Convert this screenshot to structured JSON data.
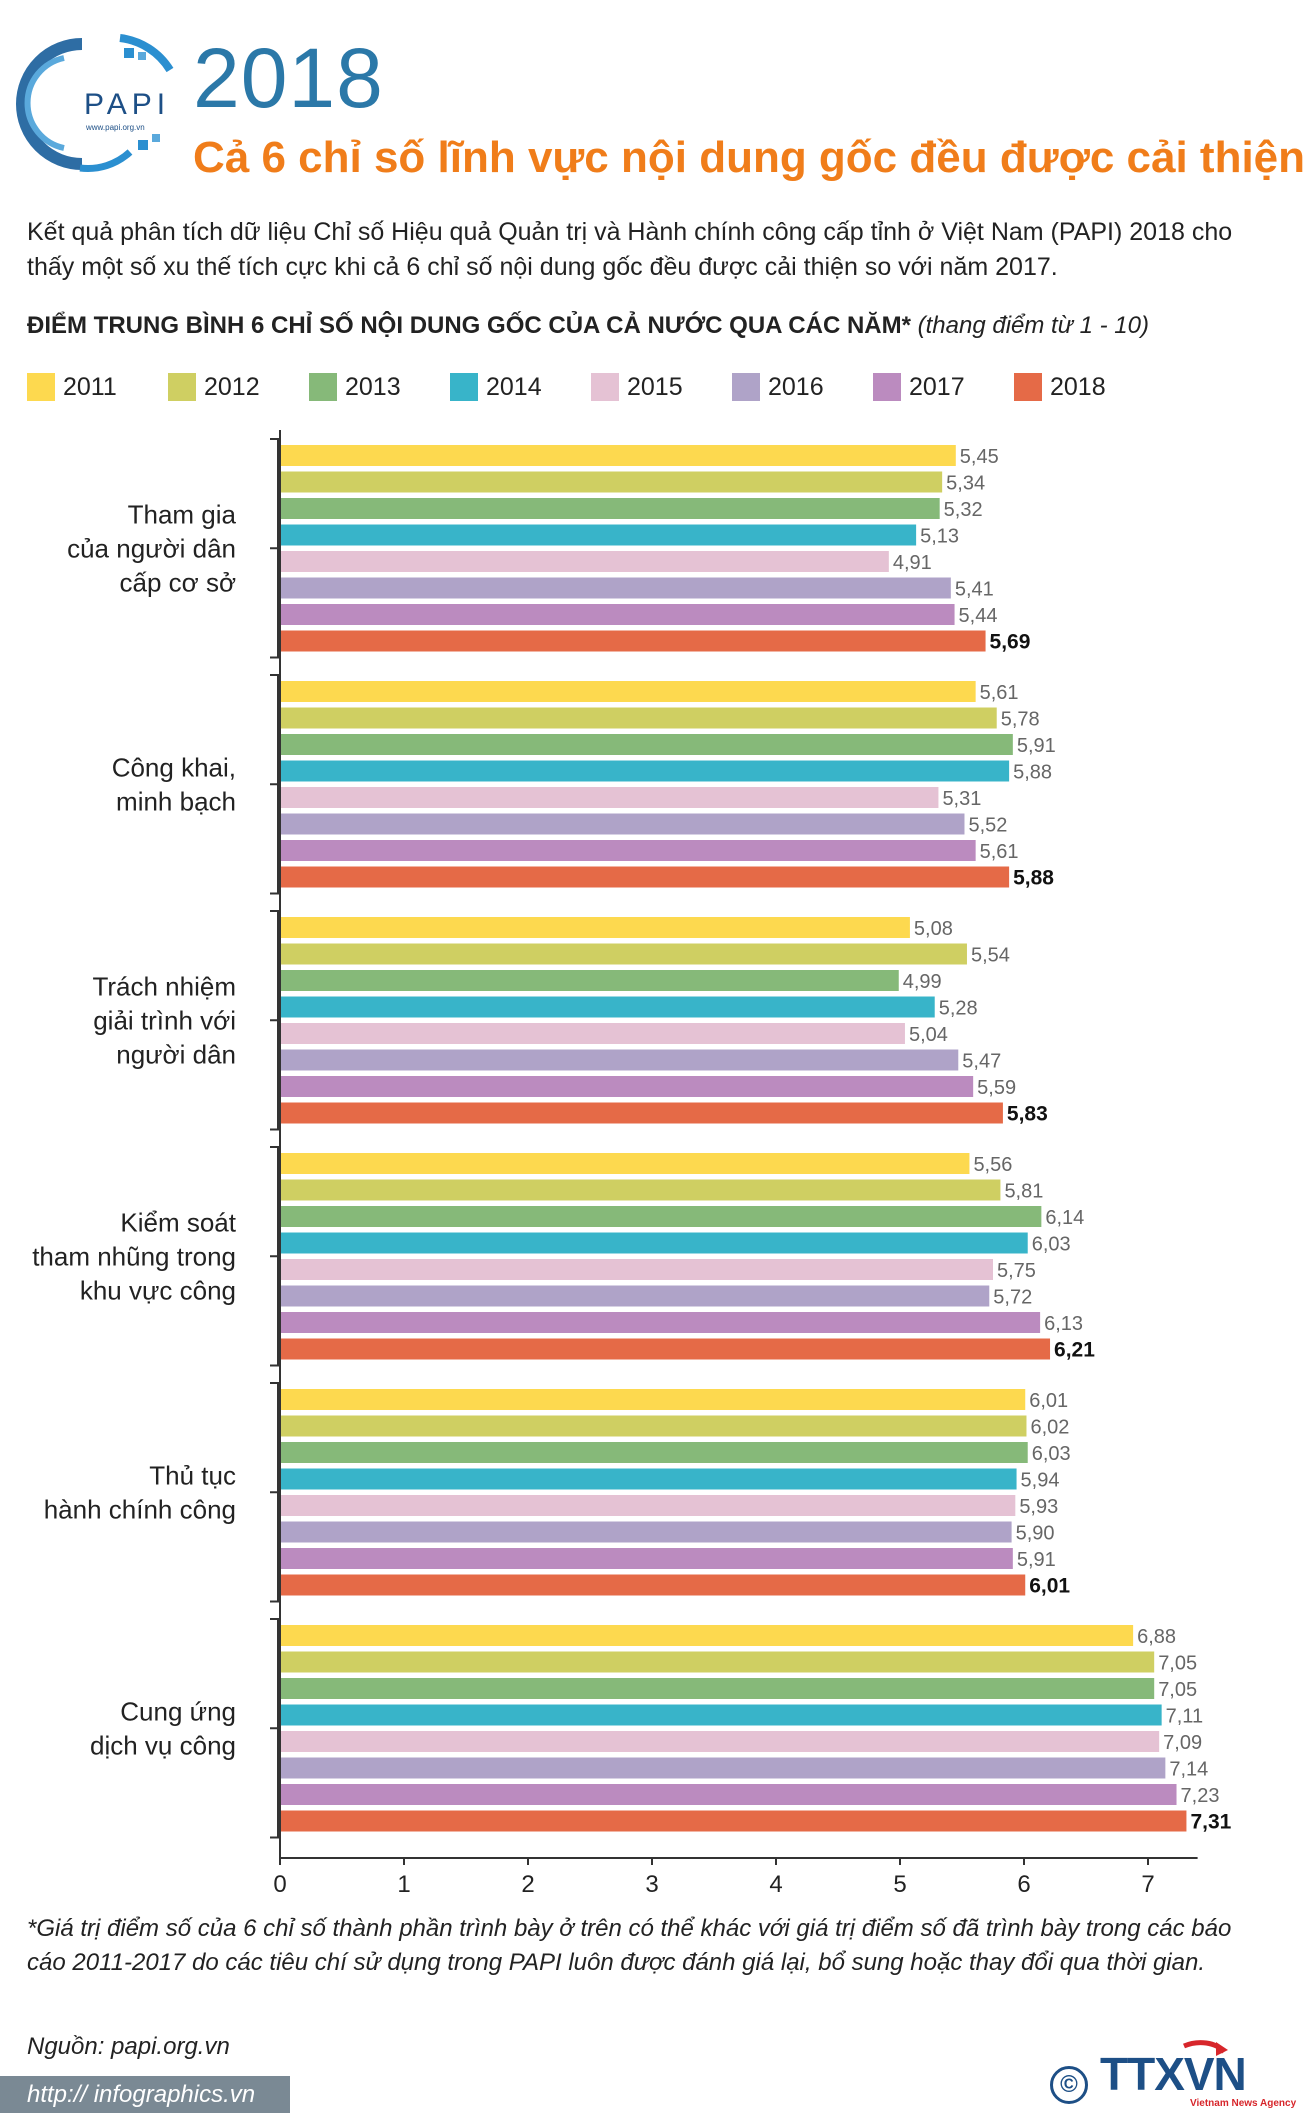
{
  "header": {
    "logo_text": "PAPI",
    "logo_url": "www.papi.org.vn",
    "year": "2018",
    "title": "Cả 6 chỉ số lĩnh vực nội dung gốc đều được cải thiện"
  },
  "intro": "Kết quả phân tích dữ liệu Chỉ số Hiệu quả Quản trị và Hành chính công cấp tỉnh ở Việt Nam (PAPI) 2018 cho thấy một số xu thế tích cực khi cả 6 chỉ số nội dung gốc đều được cải thiện so với năm 2017.",
  "chart_heading": {
    "main": "ĐIỂM TRUNG BÌNH 6 CHỈ SỐ NỘI DUNG GỐC CỦA CẢ NƯỚC QUA CÁC NĂM*",
    "note": "(thang điểm từ 1 - 10)"
  },
  "colors": {
    "2011": "#fdd94f",
    "2012": "#cfcf62",
    "2013": "#86b979",
    "2014": "#38b4c9",
    "2015": "#e5c2d4",
    "2016": "#afa3c8",
    "2017": "#bb8bbf",
    "2018": "#e56a47",
    "axis": "#333333",
    "value_label": "#666666",
    "title_orange": "#f07d1a",
    "year_blue": "#2b78a8"
  },
  "chart_data": {
    "type": "bar",
    "orientation": "horizontal",
    "title": "ĐIỂM TRUNG BÌNH 6 CHỈ SỐ NỘI DUNG GỐC CỦA CẢ NƯỚC QUA CÁC NĂM*",
    "xlabel": "",
    "ylabel": "",
    "xlim": [
      0,
      7.4
    ],
    "x_ticks": [
      "0",
      "1",
      "2",
      "3",
      "4",
      "5",
      "6",
      "7"
    ],
    "series_names": [
      "2011",
      "2012",
      "2013",
      "2014",
      "2015",
      "2016",
      "2017",
      "2018"
    ],
    "categories": [
      {
        "lines": [
          "Tham gia",
          "của người dân",
          "cấp cơ sở"
        ],
        "values": [
          5.45,
          5.34,
          5.32,
          5.13,
          4.91,
          5.41,
          5.44,
          5.69
        ],
        "labels": [
          "5,45",
          "5,34",
          "5,32",
          "5,13",
          "4,91",
          "5,41",
          "5,44",
          "5,69"
        ]
      },
      {
        "lines": [
          "Công khai,",
          "minh bạch"
        ],
        "values": [
          5.61,
          5.78,
          5.91,
          5.88,
          5.31,
          5.52,
          5.61,
          5.88
        ],
        "labels": [
          "5,61",
          "5,78",
          "5,91",
          "5,88",
          "5,31",
          "5,52",
          "5,61",
          "5,88"
        ]
      },
      {
        "lines": [
          "Trách nhiệm",
          "giải trình với",
          "người dân"
        ],
        "values": [
          5.08,
          5.54,
          4.99,
          5.28,
          5.04,
          5.47,
          5.59,
          5.83
        ],
        "labels": [
          "5,08",
          "5,54",
          "4,99",
          "5,28",
          "5,04",
          "5,47",
          "5,59",
          "5,83"
        ]
      },
      {
        "lines": [
          "Kiểm soát",
          "tham nhũng trong",
          "khu vực công"
        ],
        "values": [
          5.56,
          5.81,
          6.14,
          6.03,
          5.75,
          5.72,
          6.13,
          6.21
        ],
        "labels": [
          "5,56",
          "5,81",
          "6,14",
          "6,03",
          "5,75",
          "5,72",
          "6,13",
          "6,21"
        ]
      },
      {
        "lines": [
          "Thủ tục",
          "hành chính công"
        ],
        "values": [
          6.01,
          6.02,
          6.03,
          5.94,
          5.93,
          5.9,
          5.91,
          6.01
        ],
        "labels": [
          "6,01",
          "6,02",
          "6,03",
          "5,94",
          "5,93",
          "5,90",
          "5,91",
          "6,01"
        ]
      },
      {
        "lines": [
          "Cung ứng",
          "dịch vụ công"
        ],
        "values": [
          6.88,
          7.05,
          7.05,
          7.11,
          7.09,
          7.14,
          7.23,
          7.31
        ],
        "labels": [
          "6,88",
          "7,05",
          "7,05",
          "7,11",
          "7,09",
          "7,14",
          "7,23",
          "7,31"
        ]
      }
    ]
  },
  "footnote": "*Giá trị điểm số của 6 chỉ số thành phần trình bày ở trên có thể khác với giá trị điểm số đã trình bày trong các báo cáo 2011-2017 do các tiêu chí sử dụng trong PAPI luôn được đánh giá lại, bổ sung hoặc thay đổi qua thời gian.",
  "source": "Nguồn: papi.org.vn",
  "url": "http:// infographics.vn",
  "copyright": "©",
  "agency": {
    "name": "TTXVN",
    "subtitle": "Vietnam News Agency"
  }
}
